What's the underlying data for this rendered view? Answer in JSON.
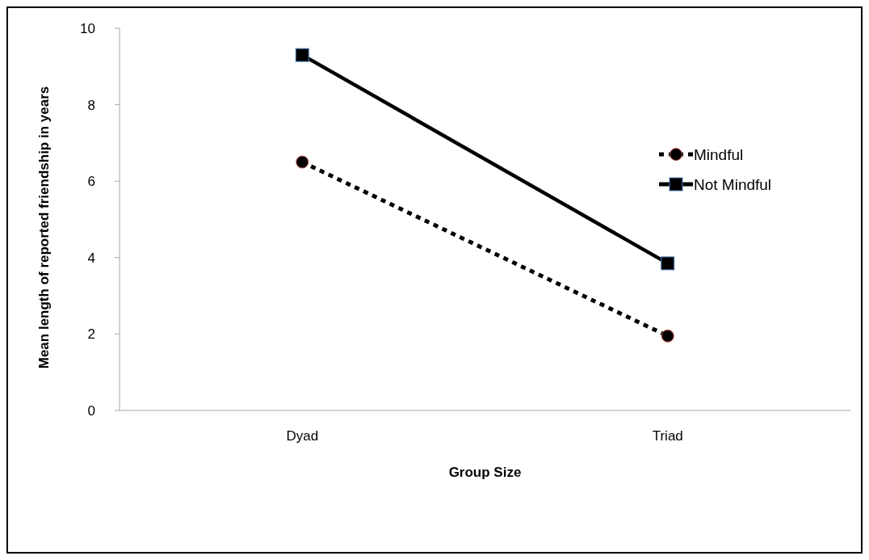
{
  "chart_data": {
    "type": "line",
    "xlabel": "Group Size",
    "ylabel": "Mean length of reported friendship in years",
    "categories": [
      "Dyad",
      "Triad"
    ],
    "series": [
      {
        "name": "Mindful",
        "color": "#000000",
        "values": [
          6.5,
          1.95
        ],
        "marker": "circle",
        "line_style": "dotted"
      },
      {
        "name": "Not Mindful",
        "color": "#000000",
        "values": [
          9.3,
          3.85
        ],
        "marker": "square",
        "line_style": "solid"
      }
    ],
    "ylim": [
      0,
      10
    ],
    "yticks": [
      0,
      2,
      4,
      6,
      8,
      10
    ],
    "grid": false,
    "legend": "right"
  }
}
